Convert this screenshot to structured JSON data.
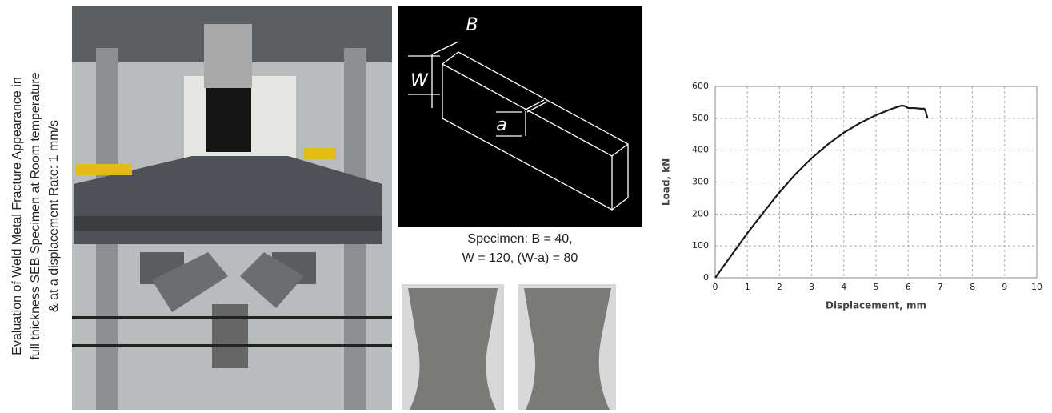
{
  "side_caption": [
    "Evaluation of Weld Metal Fracture Appearance in",
    "full thickness SEB Specimen at Room temperature",
    "& at a displacement Rate: 1 mm/s"
  ],
  "diagram": {
    "labels": [
      "B",
      "W",
      "a"
    ],
    "caption": [
      "Specimen: B = 40,",
      "W = 120, (W-a) = 80"
    ]
  },
  "chart_data": {
    "type": "line",
    "xlabel": "Displacement, mm",
    "ylabel": "Load, kN",
    "x": [
      0,
      0.5,
      1,
      1.5,
      2,
      2.5,
      3,
      3.5,
      4,
      4.5,
      5,
      5.5,
      5.8,
      5.9,
      6,
      6.2,
      6.4,
      6.5,
      6.55,
      6.6
    ],
    "values": [
      0,
      70,
      140,
      205,
      268,
      325,
      375,
      418,
      455,
      485,
      510,
      530,
      540,
      538,
      532,
      532,
      530,
      530,
      520,
      500
    ],
    "color": "#1a1a1a",
    "xlim": [
      0,
      10
    ],
    "ylim": [
      0,
      600
    ],
    "xticks": [
      0,
      1,
      2,
      3,
      4,
      5,
      6,
      7,
      8,
      9,
      10
    ],
    "yticks": [
      0,
      100,
      200,
      300,
      400,
      500,
      600
    ],
    "grid": true
  }
}
